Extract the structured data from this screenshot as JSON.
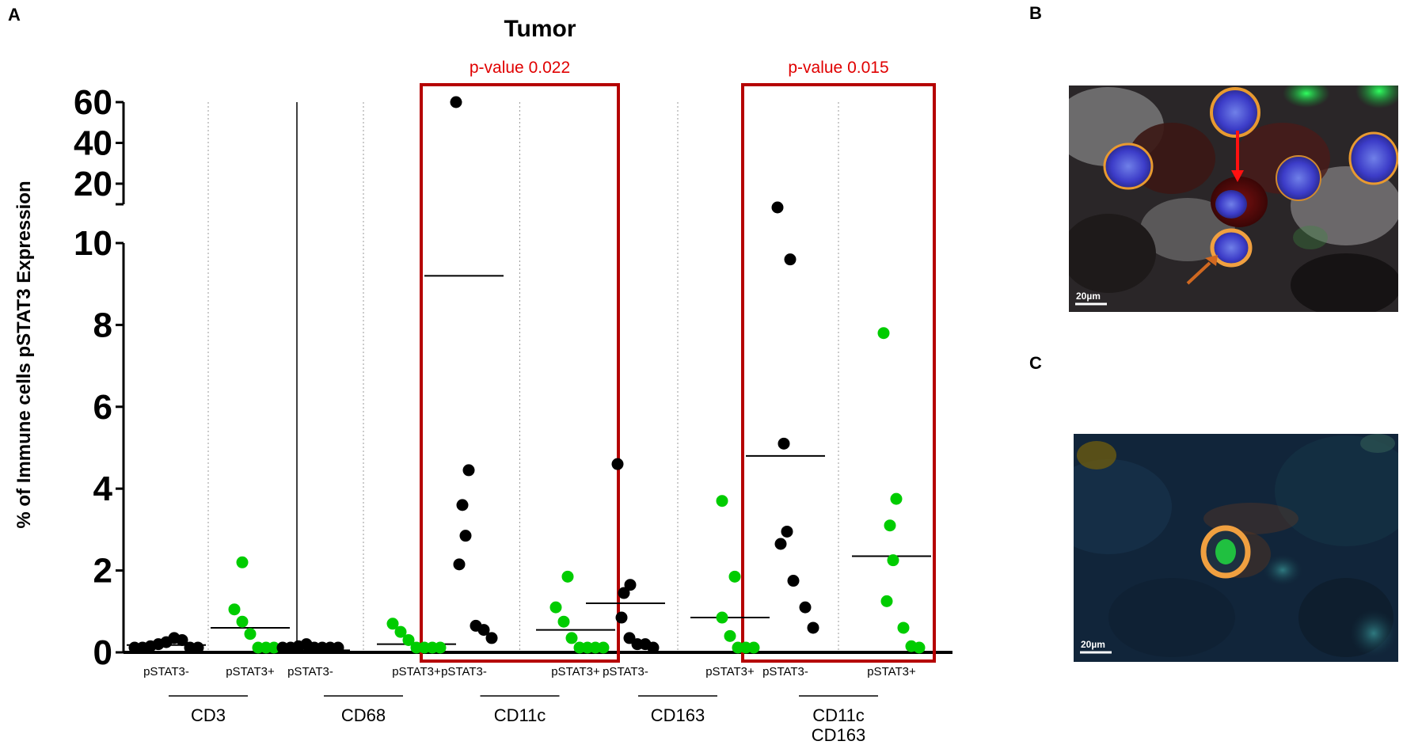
{
  "panels": {
    "a": "A",
    "b": "B",
    "c": "C"
  },
  "chart_data": {
    "type": "scatter",
    "title": "Tumor",
    "ylabel": "% of Immune cells pSTAT3 Expression",
    "xlabel": "",
    "y_axis": {
      "lower_range": [
        0,
        10
      ],
      "lower_ticks": [
        "0",
        "2",
        "4",
        "6",
        "8",
        "10"
      ],
      "upper_range": [
        20,
        60
      ],
      "upper_ticks": [
        "20",
        "40",
        "60"
      ],
      "break": true
    },
    "colors": {
      "pSTAT3-": "#000000",
      "pSTAT3+": "#00cc00",
      "highlight_box": "#b50000",
      "pvalue_text": "#e00000"
    },
    "markers": [
      {
        "name": "CD3",
        "label_lines": [
          "CD3"
        ],
        "groups": [
          {
            "label": "pSTAT3-",
            "color": "#000000",
            "values": [
              0.05,
              0.1,
              0.15,
              0.2,
              0.25,
              0.35,
              0.3,
              0.1,
              0.05
            ],
            "mean": 0.18
          },
          {
            "label": "pSTAT3+",
            "color": "#00cc00",
            "values": [
              2.2,
              1.05,
              0.75,
              0.45,
              0.05,
              0.05,
              0.05
            ],
            "mean": 0.6
          }
        ],
        "highlight": false
      },
      {
        "name": "CD68",
        "label_lines": [
          "CD68"
        ],
        "groups": [
          {
            "label": "pSTAT3-",
            "color": "#000000",
            "values": [
              0.05,
              0.1,
              0.15,
              0.2,
              0.05,
              0.02,
              0.0,
              0.0
            ],
            "mean": 0.05
          },
          {
            "label": "pSTAT3+",
            "color": "#00cc00",
            "values": [
              0.7,
              0.5,
              0.3,
              0.05,
              0.02,
              0.02,
              0.02
            ],
            "mean": 0.2
          }
        ],
        "highlight": false
      },
      {
        "name": "CD11c",
        "label_lines": [
          "CD11c"
        ],
        "groups": [
          {
            "label": "pSTAT3-",
            "color": "#000000",
            "values": [
              60,
              4.45,
              3.6,
              2.85,
              2.15,
              0.65,
              0.55,
              0.35
            ],
            "mean": 9.2
          },
          {
            "label": "pSTAT3+",
            "color": "#00cc00",
            "values": [
              1.85,
              1.1,
              0.75,
              0.35,
              0.1,
              0.1,
              0.1,
              0.1
            ],
            "mean": 0.55
          }
        ],
        "highlight": true,
        "p_value": "p-value 0.022"
      },
      {
        "name": "CD163",
        "label_lines": [
          "CD163"
        ],
        "groups": [
          {
            "label": "pSTAT3-",
            "color": "#000000",
            "values": [
              4.6,
              1.65,
              1.45,
              0.85,
              0.35,
              0.2,
              0.2,
              0.0
            ],
            "mean": 1.2
          },
          {
            "label": "pSTAT3+",
            "color": "#00cc00",
            "values": [
              3.7,
              1.85,
              0.85,
              0.4,
              0.05,
              0.05,
              0.05
            ],
            "mean": 0.85
          }
        ],
        "highlight": false
      },
      {
        "name": "CD11c CD163",
        "label_lines": [
          "CD11c",
          "CD163"
        ],
        "groups": [
          {
            "label": "pSTAT3-",
            "color": "#000000",
            "values": [
              15,
              9.6,
              5.1,
              2.95,
              2.65,
              1.75,
              1.1,
              0.6
            ],
            "mean": 4.8
          },
          {
            "label": "pSTAT3+",
            "color": "#00cc00",
            "values": [
              7.8,
              3.75,
              3.1,
              2.25,
              1.25,
              0.6,
              0.15,
              0.05
            ],
            "mean": 2.35
          }
        ],
        "highlight": true,
        "p_value": "p-value 0.015"
      }
    ]
  },
  "images": [
    {
      "panel": "B",
      "scale_bar": "20µm"
    },
    {
      "panel": "C",
      "scale_bar": "20µm"
    }
  ]
}
